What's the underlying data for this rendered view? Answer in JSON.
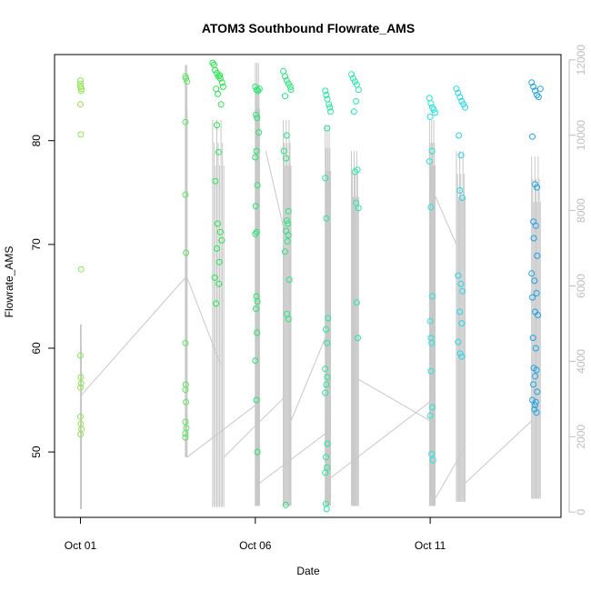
{
  "chart_data": {
    "type": "scatter",
    "title": "ATOM3 Southbound Flowrate_AMS",
    "xlabel": "Date",
    "ylabel": "Flowrate_AMS",
    "x_ticks": [
      "Oct 01",
      "Oct 06",
      "Oct 11"
    ],
    "x_tick_positions_days": [
      1,
      6,
      11
    ],
    "xlim_days": [
      0.26,
      14.74
    ],
    "ylim": [
      43.7,
      88.3
    ],
    "y_ticks": [
      50,
      60,
      70,
      80
    ],
    "y2_ticks": [
      0,
      2000,
      4000,
      6000,
      8000,
      10000,
      12000
    ],
    "y2lim": [
      -140,
      12140
    ],
    "grid": false,
    "series": [
      {
        "color": "#8de84a",
        "x": [
          1.0,
          1.0,
          1.0,
          1.02,
          1.03,
          1.0,
          1.01,
          1.02,
          1.0,
          1.01,
          1.02,
          1.0,
          1.0,
          1.01,
          1.03,
          1.0
        ],
        "y": [
          85.8,
          85.5,
          85.2,
          84.8,
          85.0,
          83.5,
          80.6,
          67.6,
          59.3,
          57.2,
          56.6,
          56.2,
          53.4,
          52.7,
          52.2,
          51.7
        ]
      },
      {
        "color": "#5ae85a",
        "x": [
          4.0,
          4.02,
          4.05,
          4.0,
          4.0,
          4.02,
          4.0,
          4.01,
          4.0,
          4.02,
          4.0,
          4.03,
          4.0,
          4.0
        ],
        "y": [
          86.2,
          86.0,
          85.7,
          81.8,
          74.8,
          69.2,
          60.5,
          56.5,
          56.0,
          54.8,
          52.9,
          52.3,
          51.8,
          51.4
        ]
      },
      {
        "color": "#22e84a",
        "x": [
          4.78,
          4.82,
          4.85,
          4.9,
          4.95,
          5.0,
          5.05,
          5.08,
          4.88,
          4.93,
          4.98,
          5.02,
          4.9,
          4.95,
          4.86,
          4.92,
          5.0,
          5.04,
          4.9,
          4.97,
          4.84,
          4.96,
          4.88
        ],
        "y": [
          87.5,
          87.3,
          86.8,
          86.5,
          86.2,
          86.0,
          85.6,
          85.2,
          85.0,
          84.5,
          86.3,
          83.5,
          81.5,
          78.9,
          76.1,
          72.0,
          71.2,
          70.4,
          69.6,
          68.3,
          66.8,
          66.2,
          64.3
        ]
      },
      {
        "color": "#22e86a",
        "x": [
          6.0,
          6.04,
          6.08,
          6.12,
          6.02,
          6.05,
          6.1,
          6.03,
          6.0,
          6.06,
          6.01,
          6.04,
          6.0,
          6.03,
          6.06,
          6.02,
          6.05,
          6.0,
          6.03,
          6.06
        ],
        "y": [
          85.2,
          84.9,
          84.8,
          85.0,
          82.5,
          82.2,
          80.8,
          79.0,
          78.4,
          75.7,
          73.7,
          71.2,
          71.0,
          65.0,
          64.5,
          63.8,
          61.5,
          58.8,
          55.0,
          50.0
        ]
      },
      {
        "color": "#22e87a",
        "x": [
          6.8,
          6.85,
          6.9,
          6.95,
          7.0,
          7.02,
          6.85,
          6.9,
          6.82,
          6.88,
          6.95,
          6.9,
          6.93,
          6.88,
          6.95,
          6.92,
          6.85,
          6.97,
          6.9,
          6.95,
          6.87
        ],
        "y": [
          86.7,
          86.2,
          85.8,
          85.5,
          85.2,
          84.9,
          84.3,
          80.5,
          79.0,
          78.3,
          73.2,
          72.3,
          72.0,
          71.3,
          70.9,
          70.3,
          69.3,
          66.6,
          63.3,
          62.8,
          44.9
        ]
      },
      {
        "color": "#22e89a",
        "x": [
          8.0,
          8.03,
          8.06,
          8.1,
          8.13,
          8.15,
          8.05,
          8.0,
          8.03,
          8.08,
          8.02,
          8.05,
          8.0,
          8.06,
          8.03,
          8.0,
          8.06,
          8.02,
          8.05,
          8.0,
          8.02,
          8.04
        ],
        "y": [
          84.8,
          84.4,
          84.0,
          83.5,
          83.2,
          82.8,
          81.2,
          76.4,
          72.5,
          62.9,
          61.8,
          60.5,
          58.0,
          57.2,
          56.5,
          55.7,
          50.8,
          49.5,
          48.5,
          48.0,
          45.0,
          44.5
        ]
      },
      {
        "color": "#22e8aa",
        "x": [
          8.75,
          8.8,
          8.85,
          8.9,
          8.95,
          8.82,
          8.88,
          8.85,
          8.92,
          8.88,
          8.95,
          8.9,
          8.93
        ],
        "y": [
          86.4,
          86.0,
          85.7,
          85.4,
          84.9,
          82.8,
          83.8,
          77.0,
          77.2,
          74.0,
          73.5,
          64.4,
          61.0
        ]
      },
      {
        "color": "#22e8d8",
        "x": [
          10.98,
          11.02,
          11.06,
          11.1,
          11.14,
          11.0,
          11.05,
          10.98,
          11.02,
          11.06,
          11.0,
          11.04,
          11.02,
          11.06,
          11.0,
          11.04,
          11.08,
          11.02
        ],
        "y": [
          84.1,
          83.6,
          83.2,
          83.0,
          82.7,
          82.3,
          79.0,
          78.0,
          73.6,
          65.0,
          62.6,
          60.5,
          57.8,
          54.3,
          53.5,
          49.8,
          49.2,
          61.0
        ]
      },
      {
        "color": "#22d8e8",
        "x": [
          11.75,
          11.8,
          11.85,
          11.9,
          11.95,
          12.0,
          11.82,
          11.88,
          11.85,
          11.92,
          11.8,
          11.88,
          11.92,
          11.85,
          11.9,
          11.8,
          11.86,
          11.9
        ],
        "y": [
          85.0,
          84.6,
          84.2,
          83.8,
          83.5,
          83.2,
          80.5,
          78.6,
          75.2,
          74.5,
          67.0,
          66.2,
          65.5,
          63.5,
          62.4,
          60.6,
          59.5,
          59.2
        ]
      },
      {
        "color": "#1aa2e8",
        "x": [
          13.9,
          13.95,
          14.0,
          14.05,
          14.1,
          14.15,
          13.92,
          14.0,
          14.05,
          13.95,
          14.02,
          13.96,
          14.06,
          13.9,
          13.98,
          14.04,
          13.92,
          14.0,
          14.08,
          13.94,
          14.02,
          13.96,
          14.04,
          14.0,
          13.95,
          14.06,
          13.92,
          14.02,
          14.04,
          13.98,
          14.0
        ],
        "y": [
          85.6,
          85.2,
          84.8,
          84.4,
          84.2,
          85.0,
          80.4,
          75.8,
          75.5,
          72.2,
          71.8,
          70.6,
          68.9,
          67.2,
          66.5,
          65.3,
          64.9,
          63.5,
          63.2,
          61.0,
          60.0,
          58.1,
          57.9,
          57.3,
          56.5,
          55.8,
          55.0,
          54.8,
          53.8,
          54.1,
          54.5
        ]
      }
    ]
  },
  "colors": {
    "axis": "#000000",
    "secondary_axis": "#bdbdbd",
    "background_line": "#c8c8c8"
  }
}
